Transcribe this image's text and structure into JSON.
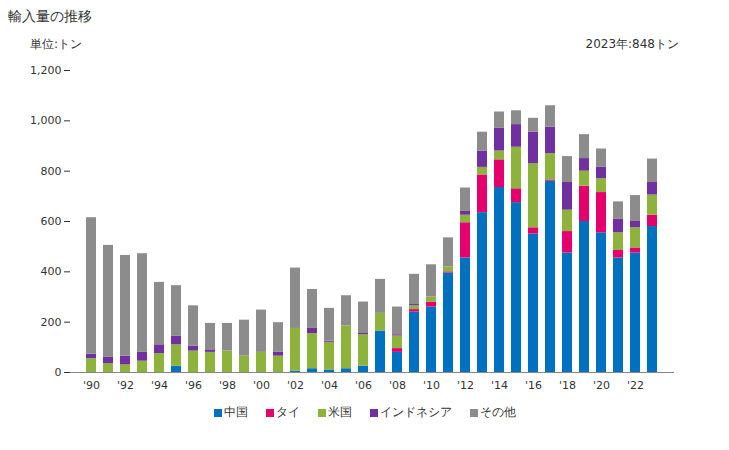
{
  "chart_data": {
    "type": "bar",
    "title": "輸入量の推移",
    "y_label": "単位:トン",
    "annotation": "2023年:848トン",
    "stacked": true,
    "grid": false,
    "legend": "bottom",
    "categories": [
      "'90",
      null,
      "'92",
      null,
      "'94",
      null,
      "'96",
      null,
      "'98",
      null,
      "'00",
      null,
      "'02",
      null,
      "'04",
      null,
      "'06",
      null,
      "'08",
      null,
      "'10",
      null,
      "'12",
      null,
      "'14",
      null,
      "'16",
      null,
      "'18",
      null,
      "'20",
      null,
      "'22",
      null
    ],
    "series": [
      {
        "name": "中国",
        "color": "#0070c0",
        "values": [
          0,
          0,
          0,
          0,
          0,
          25,
          0,
          0,
          0,
          0,
          0,
          0,
          5,
          15,
          10,
          15,
          25,
          165,
          80,
          240,
          260,
          395,
          455,
          635,
          735,
          675,
          550,
          760,
          475,
          600,
          555,
          455,
          475,
          580
        ]
      },
      {
        "name": "タイ",
        "color": "#e6006e",
        "values": [
          0,
          0,
          0,
          0,
          0,
          0,
          0,
          0,
          0,
          0,
          0,
          0,
          0,
          0,
          0,
          0,
          0,
          0,
          15,
          10,
          20,
          5,
          140,
          150,
          110,
          55,
          25,
          5,
          85,
          140,
          160,
          30,
          20,
          45
        ]
      },
      {
        "name": "米国",
        "color": "#8db33c",
        "values": [
          55,
          35,
          30,
          45,
          75,
          85,
          85,
          80,
          85,
          65,
          80,
          65,
          170,
          140,
          110,
          170,
          125,
          70,
          50,
          15,
          20,
          20,
          30,
          30,
          35,
          165,
          255,
          105,
          85,
          60,
          55,
          70,
          80,
          80
        ]
      },
      {
        "name": "インドネシア",
        "color": "#7030a0",
        "values": [
          18,
          25,
          35,
          35,
          35,
          35,
          20,
          10,
          0,
          0,
          0,
          15,
          0,
          20,
          5,
          0,
          5,
          0,
          5,
          5,
          0,
          0,
          15,
          65,
          90,
          90,
          125,
          105,
          110,
          50,
          45,
          55,
          25,
          50
        ]
      },
      {
        "name": "その他",
        "color": "#8c8c8c",
        "values": [
          542,
          445,
          400,
          392,
          248,
          200,
          160,
          105,
          110,
          143,
          168,
          118,
          240,
          155,
          130,
          120,
          125,
          135,
          110,
          120,
          128,
          115,
          93,
          75,
          65,
          55,
          55,
          85,
          103,
          95,
          73,
          68,
          103,
          93
        ]
      }
    ],
    "ylim": [
      0,
      1200
    ],
    "yticks": [
      0,
      200,
      400,
      600,
      800,
      {
        "value": 1000,
        "label": "1,000"
      },
      {
        "value": 1200,
        "label": "1,200"
      }
    ]
  }
}
